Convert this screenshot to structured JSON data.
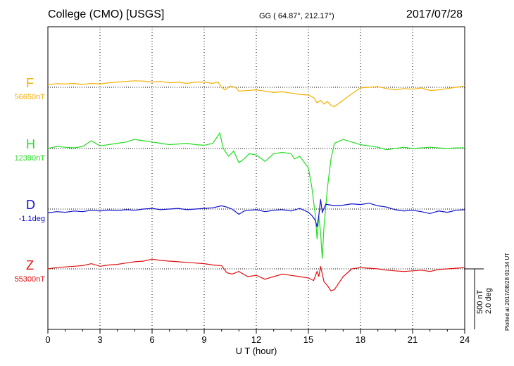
{
  "header": {
    "station": "College (CMO)  [USGS]",
    "coords": "GG ( 64.87°, 212.17°)",
    "date": "2017/07/28"
  },
  "side_note": "Plotted at 2017/08/28 01:34 UT",
  "scale": {
    "line1": "500 nT",
    "line2": "2.0 deg"
  },
  "chart_data": {
    "type": "line",
    "title": "",
    "xlabel": "U T (hour)",
    "ylabel": "",
    "xlim": [
      0,
      24
    ],
    "xticks": [
      0,
      3,
      6,
      9,
      12,
      15,
      18,
      21,
      24
    ],
    "xtick_labels": [
      "0",
      "3",
      "6",
      "9",
      "12",
      "15",
      "18",
      "21",
      "24"
    ],
    "grid": "dotted vertical lines every 3 hours, dotted baseline per channel",
    "units_per_scale_bar": {
      "nT": 500,
      "deg": 2.0
    },
    "series": [
      {
        "name": "F",
        "baseline_label": "56650nT",
        "color": "#f5b000",
        "x": [
          0,
          0.5,
          1,
          1.5,
          2,
          2.5,
          3,
          3.5,
          4,
          4.5,
          5,
          5.5,
          6,
          6.5,
          7,
          7.5,
          8,
          8.5,
          9,
          9.5,
          9.8,
          10,
          10.2,
          10.5,
          10.8,
          11,
          11.5,
          12,
          12.5,
          13,
          13.5,
          14,
          14.5,
          15,
          15.3,
          15.5,
          15.7,
          15.9,
          16.1,
          16.3,
          16.5,
          17,
          17.5,
          18,
          18.5,
          19,
          19.5,
          20,
          20.5,
          21,
          21.5,
          22,
          22.5,
          23,
          23.5,
          24
        ],
        "values": [
          20,
          28,
          25,
          30,
          22,
          30,
          25,
          35,
          40,
          45,
          50,
          48,
          40,
          45,
          35,
          40,
          30,
          40,
          40,
          30,
          40,
          0,
          -20,
          10,
          0,
          -30,
          -25,
          -20,
          -30,
          -40,
          -35,
          -45,
          -55,
          -60,
          -80,
          -120,
          -100,
          -130,
          -110,
          -140,
          -150,
          -100,
          -50,
          -5,
          0,
          5,
          -10,
          -20,
          -10,
          -15,
          -5,
          -25,
          -20,
          -10,
          0,
          10
        ]
      },
      {
        "name": "H",
        "baseline_label": "12390nT",
        "color": "#22dd22",
        "x": [
          0,
          0.5,
          1,
          1.5,
          2,
          2.5,
          3,
          3.5,
          4,
          4.5,
          5,
          5.5,
          6,
          6.5,
          7,
          7.5,
          8,
          8.5,
          9,
          9.5,
          9.9,
          10.1,
          10.4,
          10.7,
          11,
          11.3,
          11.6,
          12,
          12.5,
          13,
          13.5,
          14,
          14.2,
          14.5,
          15,
          15.2,
          15.4,
          15.5,
          15.6,
          15.7,
          15.8,
          15.9,
          16,
          16.1,
          16.3,
          16.5,
          17,
          17.5,
          18,
          18.5,
          19,
          19.5,
          20,
          20.5,
          21,
          21.5,
          22,
          22.5,
          23,
          23.5,
          24
        ],
        "values": [
          0,
          15,
          10,
          5,
          15,
          60,
          20,
          30,
          40,
          50,
          70,
          60,
          50,
          40,
          30,
          35,
          40,
          30,
          25,
          40,
          120,
          0,
          -60,
          -20,
          -110,
          -80,
          -40,
          -50,
          -100,
          -40,
          -30,
          -40,
          -80,
          -60,
          -150,
          -300,
          -520,
          -700,
          -520,
          -650,
          -850,
          -600,
          -450,
          -300,
          -80,
          40,
          70,
          50,
          30,
          20,
          10,
          -10,
          0,
          10,
          0,
          5,
          10,
          5,
          0,
          5,
          5
        ]
      },
      {
        "name": "D",
        "baseline_label": "-1.1deg",
        "color": "#1010d0",
        "x": [
          0,
          0.5,
          1,
          1.5,
          2,
          2.5,
          3,
          3.5,
          4,
          4.5,
          5,
          5.5,
          6,
          6.5,
          7,
          7.5,
          8,
          8.5,
          9,
          9.5,
          10,
          10.3,
          10.6,
          11,
          11.3,
          11.6,
          12,
          12.5,
          13,
          13.5,
          14,
          14.5,
          15,
          15.2,
          15.4,
          15.5,
          15.6,
          15.7,
          15.8,
          16,
          16.5,
          17,
          17.5,
          18,
          18.5,
          19,
          19.5,
          20,
          20.5,
          21,
          21.5,
          22,
          22.5,
          23,
          23.5,
          24
        ],
        "values": [
          -0.12,
          -0.08,
          -0.1,
          -0.06,
          -0.08,
          -0.04,
          -0.06,
          -0.03,
          -0.05,
          -0.02,
          -0.04,
          0.0,
          0.02,
          -0.02,
          0.0,
          0.02,
          -0.02,
          0.0,
          0.02,
          0.04,
          0.1,
          0.06,
          0.0,
          -0.16,
          -0.06,
          -0.04,
          -0.02,
          -0.08,
          -0.04,
          -0.02,
          -0.06,
          0.02,
          -0.1,
          -0.2,
          -0.35,
          -0.55,
          -0.2,
          0.3,
          -0.1,
          0.15,
          0.1,
          0.12,
          0.16,
          0.14,
          0.18,
          0.1,
          0.06,
          -0.02,
          -0.06,
          -0.04,
          -0.08,
          -0.14,
          -0.06,
          -0.1,
          -0.04,
          -0.02
        ]
      },
      {
        "name": "Z",
        "baseline_label": "55300nT",
        "color": "#e01010",
        "x": [
          0,
          0.5,
          1,
          1.5,
          2,
          2.5,
          3,
          3.5,
          4,
          4.5,
          5,
          5.5,
          6,
          6.5,
          7,
          7.5,
          8,
          8.5,
          9,
          9.5,
          10,
          10.3,
          10.6,
          11,
          11.5,
          12,
          12.5,
          13,
          13.5,
          14,
          14.5,
          15,
          15.3,
          15.5,
          15.6,
          15.7,
          15.9,
          16.1,
          16.3,
          16.5,
          17,
          17.5,
          18,
          18.5,
          19,
          19.5,
          20,
          20.5,
          21,
          21.5,
          22,
          22.5,
          23,
          23.5,
          24
        ],
        "values": [
          0,
          10,
          15,
          20,
          25,
          40,
          20,
          30,
          35,
          45,
          55,
          60,
          75,
          65,
          60,
          55,
          50,
          45,
          40,
          30,
          25,
          -30,
          -40,
          -20,
          -60,
          -50,
          -80,
          -60,
          -40,
          -50,
          -60,
          -70,
          -90,
          -20,
          -60,
          20,
          -100,
          -130,
          -170,
          -160,
          -60,
          0,
          10,
          5,
          0,
          -10,
          -15,
          -20,
          -15,
          -10,
          -20,
          -5,
          0,
          5,
          10
        ]
      }
    ]
  }
}
